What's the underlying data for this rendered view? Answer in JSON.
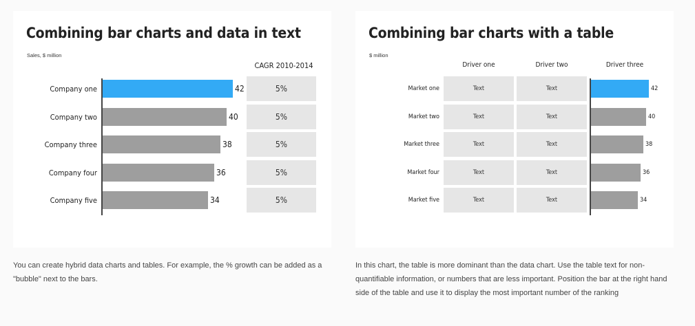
{
  "left": {
    "title": "Combining bar charts and data in text",
    "unit": "Sales, $ million",
    "column_header": "CAGR 2010-2014",
    "caption": "You can create hybrid data charts and tables. For example, the % growth can be added as a \"bubble\" next to the bars."
  },
  "right": {
    "title": "Combining bar charts with a table",
    "unit": "$ million",
    "headers": [
      "Driver one",
      "Driver two",
      "Driver three"
    ],
    "caption": "In this chart, the table is more dominant than the data chart. Use the table text for non-quantifiable information, or numbers that are less important. Position the bar at the right hand side of the table and use it to display the most important number of the ranking"
  },
  "colors": {
    "highlight": "#33aaf5",
    "bar": "#9e9e9e",
    "cell": "#e6e6e6"
  },
  "chart_data": [
    {
      "type": "bar",
      "orientation": "horizontal",
      "title": "Combining bar charts and data in text",
      "ylabel": "Sales, $ million",
      "categories": [
        "Company one",
        "Company two",
        "Company three",
        "Company four",
        "Company five"
      ],
      "values": [
        42,
        40,
        38,
        36,
        34
      ],
      "highlight_index": 0,
      "table_column": {
        "header": "CAGR 2010-2014",
        "values": [
          "5%",
          "5%",
          "5%",
          "5%",
          "5%"
        ]
      }
    },
    {
      "type": "bar",
      "orientation": "horizontal",
      "title": "Combining bar charts with a table",
      "ylabel": "$ million",
      "categories": [
        "Market one",
        "Market two",
        "Market three",
        "Market four",
        "Market five"
      ],
      "values": [
        42,
        40,
        38,
        36,
        34
      ],
      "value_header": "Driver three",
      "highlight_index": 0,
      "table_columns": [
        {
          "header": "Driver one",
          "values": [
            "Text",
            "Text",
            "Text",
            "Text",
            "Text"
          ]
        },
        {
          "header": "Driver two",
          "values": [
            "Text",
            "Text",
            "Text",
            "Text",
            "Text"
          ]
        }
      ]
    }
  ]
}
